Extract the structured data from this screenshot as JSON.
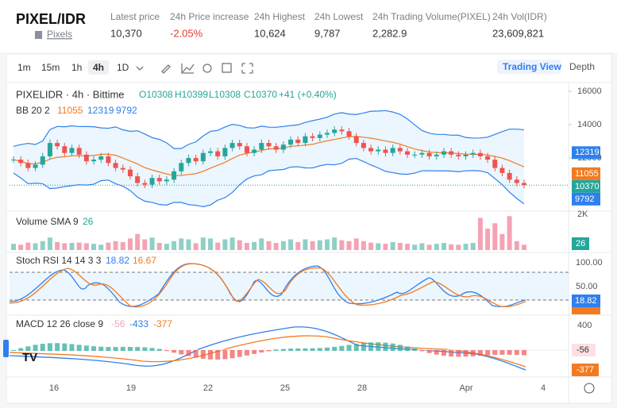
{
  "header": {
    "pair": "PIXEL/IDR",
    "link": "Pixels",
    "stats": [
      {
        "label": "Latest price",
        "value": "10,370"
      },
      {
        "label": "24h Price increase",
        "value": "-2.05%"
      },
      {
        "label": "24h Highest",
        "value": "10,624"
      },
      {
        "label": "24h Lowest",
        "value": "9,787"
      },
      {
        "label": "24h Trading Volume(PIXEL)",
        "value": "2,282.9"
      },
      {
        "label": "24h Vol(IDR)",
        "value": "23,609,821"
      }
    ]
  },
  "toolbar": {
    "intervals": [
      "1m",
      "15m",
      "1h",
      "4h",
      "1D"
    ],
    "views": [
      "Trading View",
      "Depth"
    ]
  },
  "price_pane": {
    "title": "PIXELIDR · 4h · Bittime",
    "ohlc": [
      "O10308",
      "H10399",
      "L10308",
      "C10370",
      "+41 (+0.40%)"
    ],
    "bb_label": "BB 20 2",
    "bb_values": [
      "11055",
      "12319",
      "9792"
    ],
    "ticks": [
      16000,
      14000,
      12000
    ],
    "badges": [
      {
        "value": 12319,
        "color": "#2f80ed"
      },
      {
        "value": 11055,
        "color": "#f27b22"
      },
      {
        "value": 10370,
        "color": "#26a69a"
      },
      {
        "value": 9792,
        "color": "#2f80ed"
      }
    ],
    "closes": [
      11900,
      11700,
      11400,
      11600,
      12100,
      12900,
      12700,
      12300,
      12600,
      12200,
      11800,
      11900,
      12100,
      11700,
      11400,
      11300,
      10900,
      10500,
      10400,
      10800,
      10600,
      10700,
      11200,
      11700,
      12000,
      11800,
      12300,
      12400,
      12100,
      12600,
      12900,
      12700,
      12300,
      12500,
      12900,
      12700,
      12500,
      12800,
      13100,
      12900,
      13300,
      13200,
      13400,
      13500,
      13700,
      13600,
      13300,
      12900,
      12600,
      12400,
      12500,
      12300,
      12600,
      12400,
      12200,
      12200,
      12300,
      12100,
      12200,
      12400,
      12200,
      12100,
      12200,
      12300,
      12100,
      11900,
      11400,
      11100,
      10700,
      10500,
      10370
    ]
  },
  "volume_pane": {
    "title": "Volume SMA 9",
    "value": "26",
    "tick": "2K",
    "badge": 26,
    "volumes": [
      350,
      300,
      420,
      380,
      500,
      700,
      450,
      380,
      400,
      420,
      380,
      350,
      300,
      420,
      500,
      450,
      650,
      900,
      600,
      700,
      400,
      350,
      500,
      650,
      600,
      380,
      700,
      650,
      420,
      600,
      700,
      550,
      400,
      450,
      650,
      500,
      400,
      500,
      600,
      450,
      600,
      500,
      550,
      600,
      700,
      550,
      500,
      650,
      500,
      420,
      380,
      350,
      450,
      400,
      350,
      300,
      380,
      300,
      350,
      400,
      320,
      300,
      350,
      400,
      1800,
      1200,
      1500,
      900,
      1900,
      500,
      300
    ]
  },
  "stoch_pane": {
    "title": "Stoch RSI 14 14 3 3",
    "values": [
      "18.82",
      "16.67"
    ],
    "ticks": [
      "100.00",
      "50.00"
    ],
    "badge": "18.82"
  },
  "macd_pane": {
    "title": "MACD 12 26 close 9",
    "values": [
      "-56",
      "-433",
      "-377"
    ],
    "tick": "400",
    "badges": [
      "-56",
      "-377"
    ]
  },
  "x_axis": [
    "16",
    "19",
    "22",
    "25",
    "28",
    "Apr",
    "4"
  ]
}
